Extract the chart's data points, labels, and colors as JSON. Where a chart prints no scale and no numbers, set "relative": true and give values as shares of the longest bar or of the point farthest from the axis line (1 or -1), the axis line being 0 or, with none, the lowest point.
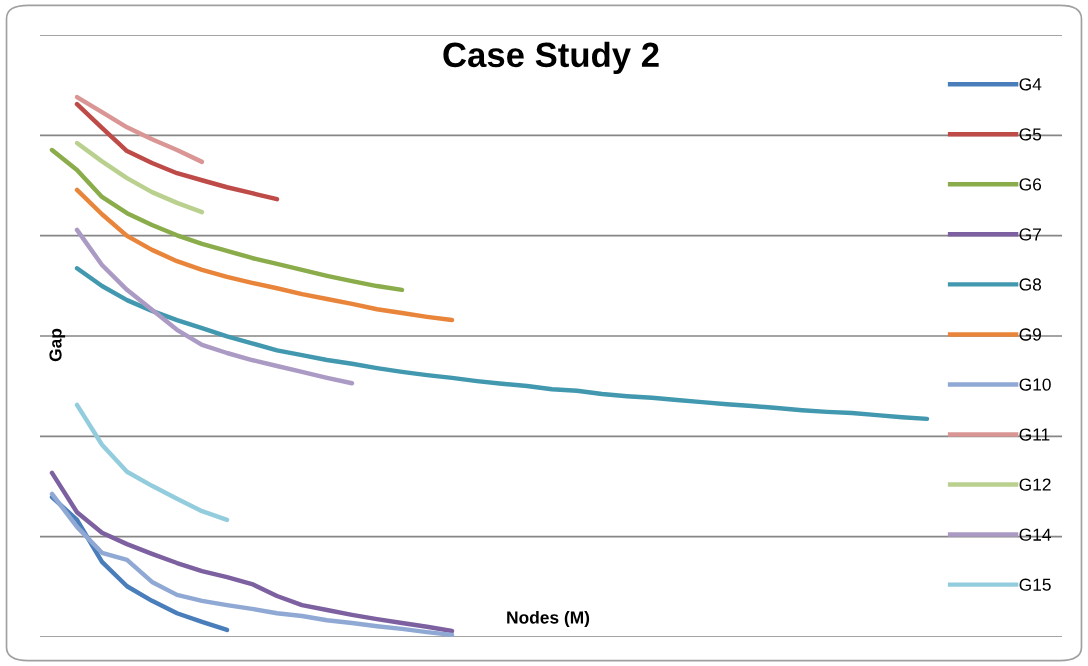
{
  "chart_data": {
    "type": "line",
    "title": "Case Study 2",
    "xlabel": "Nodes (M)",
    "ylabel": "Gap",
    "relative": true,
    "grid": "y",
    "legend": "right",
    "tick_labels": false,
    "marker": "none",
    "line_style": "solid",
    "categories": [
      null,
      null,
      null,
      null,
      null,
      null,
      null,
      null,
      null,
      null,
      null,
      null,
      null,
      null,
      null,
      null,
      null,
      null,
      null,
      null,
      null,
      null,
      null,
      null,
      null,
      null,
      null,
      null,
      null,
      null,
      null,
      null,
      null,
      null,
      null,
      null
    ],
    "series": [
      {
        "name": "G4",
        "color": "#4a7ebb",
        "values": [
          0.259,
          0.217,
          0.139,
          0.094,
          0.067,
          0.044,
          0.028,
          0.013,
          null,
          null,
          null,
          null,
          null,
          null,
          null,
          null,
          null,
          null,
          null,
          null,
          null,
          null,
          null,
          null,
          null,
          null,
          null,
          null,
          null,
          null,
          null,
          null,
          null,
          null,
          null,
          null
        ]
      },
      {
        "name": "G5",
        "color": "#be4b48",
        "values": [
          null,
          0.987,
          0.943,
          0.9,
          0.878,
          0.859,
          0.846,
          0.833,
          0.822,
          0.811,
          null,
          null,
          null,
          null,
          null,
          null,
          null,
          null,
          null,
          null,
          null,
          null,
          null,
          null,
          null,
          null,
          null,
          null,
          null,
          null,
          null,
          null,
          null,
          null,
          null,
          null
        ]
      },
      {
        "name": "G6",
        "color": "#8bac4a",
        "values": [
          0.902,
          0.865,
          0.815,
          0.785,
          0.763,
          0.744,
          0.728,
          0.715,
          0.702,
          0.691,
          0.68,
          0.669,
          0.659,
          0.65,
          0.643,
          null,
          null,
          null,
          null,
          null,
          null,
          null,
          null,
          null,
          null,
          null,
          null,
          null,
          null,
          null,
          null,
          null,
          null,
          null,
          null,
          null
        ]
      },
      {
        "name": "G7",
        "color": "#7d60a0",
        "values": [
          0.304,
          0.231,
          0.193,
          0.172,
          0.154,
          0.137,
          0.122,
          0.111,
          0.098,
          0.076,
          0.059,
          0.05,
          0.041,
          0.033,
          0.026,
          0.019,
          0.011,
          null,
          null,
          null,
          null,
          null,
          null,
          null,
          null,
          null,
          null,
          null,
          null,
          null,
          null,
          null,
          null,
          null,
          null,
          null
        ]
      },
      {
        "name": "G8",
        "color": "#4198af",
        "values": [
          null,
          0.683,
          0.65,
          0.624,
          0.604,
          0.587,
          0.572,
          0.557,
          0.544,
          0.531,
          0.522,
          0.513,
          0.506,
          0.498,
          0.491,
          0.485,
          0.48,
          0.474,
          0.469,
          0.465,
          0.459,
          0.456,
          0.45,
          0.446,
          0.443,
          0.439,
          0.435,
          0.431,
          0.428,
          0.424,
          0.42,
          0.417,
          0.415,
          0.411,
          0.407,
          0.404
        ]
      },
      {
        "name": "G9",
        "color": "#e8853a",
        "values": [
          null,
          0.828,
          0.783,
          0.743,
          0.717,
          0.696,
          0.68,
          0.667,
          0.656,
          0.646,
          0.635,
          0.626,
          0.617,
          0.607,
          0.6,
          0.593,
          0.587,
          null,
          null,
          null,
          null,
          null,
          null,
          null,
          null,
          null,
          null,
          null,
          null,
          null,
          null,
          null,
          null,
          null,
          null,
          null
        ]
      },
      {
        "name": "G10",
        "color": "#8fa8d4",
        "values": [
          0.265,
          0.204,
          0.156,
          0.143,
          0.102,
          0.078,
          0.067,
          0.059,
          0.052,
          0.044,
          0.039,
          0.031,
          0.026,
          0.02,
          0.015,
          0.009,
          0.004,
          null,
          null,
          null,
          null,
          null,
          null,
          null,
          null,
          null,
          null,
          null,
          null,
          null,
          null,
          null,
          null,
          null,
          null,
          null
        ]
      },
      {
        "name": "G11",
        "color": "#d99694",
        "values": [
          null,
          1.0,
          0.972,
          0.944,
          0.922,
          0.902,
          0.88,
          null,
          null,
          null,
          null,
          null,
          null,
          null,
          null,
          null,
          null,
          null,
          null,
          null,
          null,
          null,
          null,
          null,
          null,
          null,
          null,
          null,
          null,
          null,
          null,
          null,
          null,
          null,
          null,
          null
        ]
      },
      {
        "name": "G12",
        "color": "#b9d08f",
        "values": [
          null,
          0.915,
          0.881,
          0.85,
          0.824,
          0.804,
          0.787,
          null,
          null,
          null,
          null,
          null,
          null,
          null,
          null,
          null,
          null,
          null,
          null,
          null,
          null,
          null,
          null,
          null,
          null,
          null,
          null,
          null,
          null,
          null,
          null,
          null,
          null,
          null,
          null,
          null
        ]
      },
      {
        "name": "G14",
        "color": "#ab9bc4",
        "values": [
          null,
          0.754,
          0.689,
          0.643,
          0.606,
          0.569,
          0.541,
          0.526,
          0.513,
          0.502,
          0.491,
          0.48,
          0.47,
          null,
          null,
          null,
          null,
          null,
          null,
          null,
          null,
          null,
          null,
          null,
          null,
          null,
          null,
          null,
          null,
          null,
          null,
          null,
          null,
          null,
          null,
          null
        ]
      },
      {
        "name": "G15",
        "color": "#93cddd",
        "values": [
          null,
          0.43,
          0.356,
          0.306,
          0.28,
          0.256,
          0.233,
          0.217,
          null,
          null,
          null,
          null,
          null,
          null,
          null,
          null,
          null,
          null,
          null,
          null,
          null,
          null,
          null,
          null,
          null,
          null,
          null,
          null,
          null,
          null,
          null,
          null,
          null,
          null,
          null,
          null
        ]
      }
    ]
  }
}
